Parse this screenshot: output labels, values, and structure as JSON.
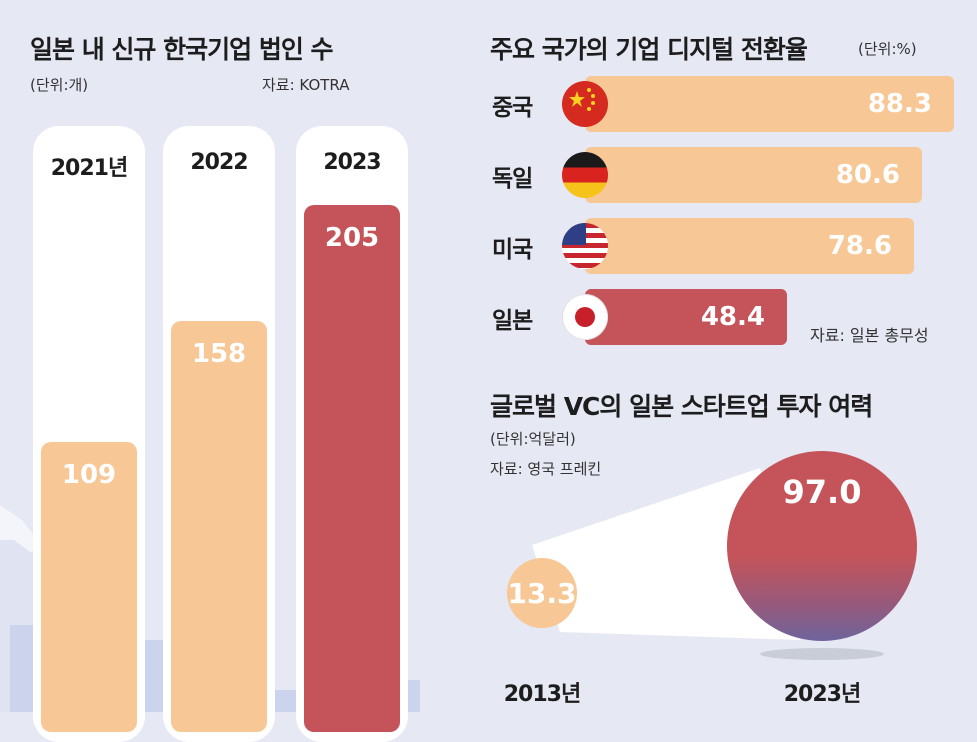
{
  "colors": {
    "background": "#e6e9f4",
    "peach": "#f7c795",
    "red": "#c5545a",
    "purple": "#74659b",
    "skyline": "#ccd3ec"
  },
  "flag_icons": [
    "china-flag-icon",
    "germany-flag-icon",
    "usa-flag-icon",
    "japan-flag-icon"
  ],
  "chart_data": [
    {
      "type": "bar",
      "title": "일본 내 신규 한국기업 법인 수",
      "unit": "(단위:개)",
      "source": "자료: KOTRA",
      "categories": [
        "2021년",
        "2022",
        "2023"
      ],
      "values": [
        109,
        158,
        205
      ],
      "value_labels": [
        "109",
        "158",
        "205"
      ],
      "bar_colors": [
        "#f7c795",
        "#f7c795",
        "#c5545a"
      ]
    },
    {
      "type": "bar",
      "orientation": "horizontal",
      "title": "주요 국가의 기업 디지털 전환율",
      "unit": "(단위:%)",
      "source": "자료: 일본 총무성",
      "categories": [
        "중국",
        "독일",
        "미국",
        "일본"
      ],
      "values": [
        88.3,
        80.6,
        78.6,
        48.4
      ],
      "value_labels": [
        "88.3",
        "80.6",
        "78.6",
        "48.4"
      ],
      "xlim": [
        0,
        100
      ],
      "bar_colors": [
        "#f7c795",
        "#f7c795",
        "#f7c795",
        "#c5545a"
      ]
    },
    {
      "type": "bubble",
      "title": "글로벌 VC의 일본 스타트업 투자 여력",
      "unit": "(단위:억달러)",
      "source": "자료: 영국 프레킨",
      "categories": [
        "2013년",
        "2023년"
      ],
      "values": [
        13.3,
        97.0
      ],
      "value_labels": [
        "13.3",
        "97.0"
      ]
    }
  ]
}
